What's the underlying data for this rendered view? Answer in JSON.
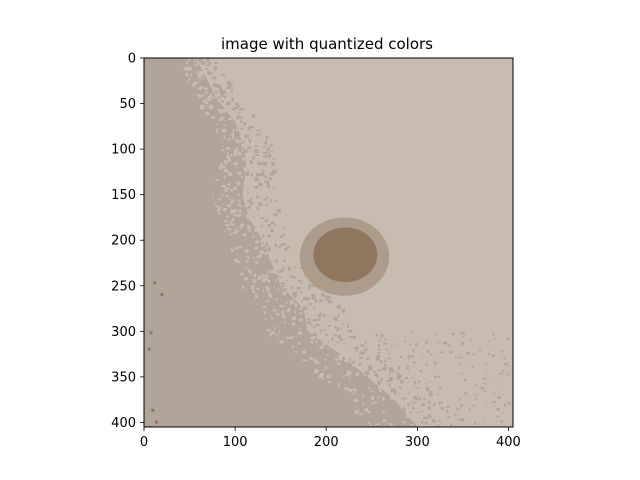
{
  "chart_data": {
    "type": "heatmap",
    "title": "image with quantized colors",
    "xlabel": "",
    "ylabel": "",
    "xlim": [
      0,
      405
    ],
    "ylim": [
      405,
      0
    ],
    "y_axis_inverted": true,
    "grid": false,
    "xticks": [
      0,
      100,
      200,
      300,
      400
    ],
    "xtick_labels": [
      "0",
      "100",
      "200",
      "300",
      "400"
    ],
    "yticks": [
      0,
      50,
      100,
      150,
      200,
      250,
      300,
      350,
      400
    ],
    "ytick_labels": [
      "0",
      "50",
      "100",
      "150",
      "200",
      "250",
      "300",
      "350",
      "400"
    ],
    "palette": {
      "background": "#c6bdb0",
      "mid": "#b1a498",
      "halo": "#ab9c8c",
      "spot": "#8f765e"
    },
    "regions": [
      {
        "label": "left mottled area",
        "color_key": "mid",
        "description": "darker band along the left side, widening toward the bottom"
      },
      {
        "label": "dark spot",
        "color_key": "spot",
        "center": [
          221,
          216
        ],
        "radius_x": 35,
        "radius_y": 30
      },
      {
        "label": "spot halo",
        "color_key": "halo",
        "center": [
          220,
          218
        ],
        "radius_x": 49,
        "radius_y": 43
      }
    ]
  }
}
